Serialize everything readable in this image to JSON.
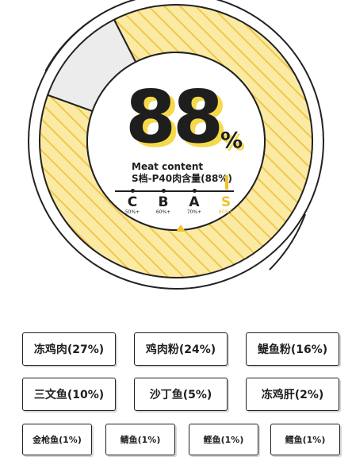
{
  "meat_content": {
    "value": "88",
    "unit": "%",
    "fraction": 0.88,
    "label_en": "Meat content",
    "label_cn": "S档-P40肉含量(88%)"
  },
  "grades": [
    {
      "letter": "C",
      "threshold": "50%+",
      "active": false
    },
    {
      "letter": "B",
      "threshold": "60%+",
      "active": false
    },
    {
      "letter": "A",
      "threshold": "70%+",
      "active": false
    },
    {
      "letter": "S",
      "threshold": "80%+",
      "active": true
    }
  ],
  "ingredients_row1": [
    {
      "label": "冻鸡肉(27%)"
    },
    {
      "label": "鸡肉粉(24%)"
    },
    {
      "label": "鳀鱼粉(16%)"
    }
  ],
  "ingredients_row2": [
    {
      "label": "三文鱼(10%)"
    },
    {
      "label": "沙丁鱼(5%)"
    },
    {
      "label": "冻鸡肝(2%)"
    }
  ],
  "ingredients_row3": [
    {
      "label": "金枪鱼(1%)"
    },
    {
      "label": "鲭鱼(1%)"
    },
    {
      "label": "鲣鱼(1%)"
    },
    {
      "label": "鳕鱼(1%)"
    }
  ],
  "colors": {
    "accent": "#f0c22c",
    "fill": "#fbeaa4",
    "remainder": "#ececec",
    "ink": "#1e1e1e"
  }
}
